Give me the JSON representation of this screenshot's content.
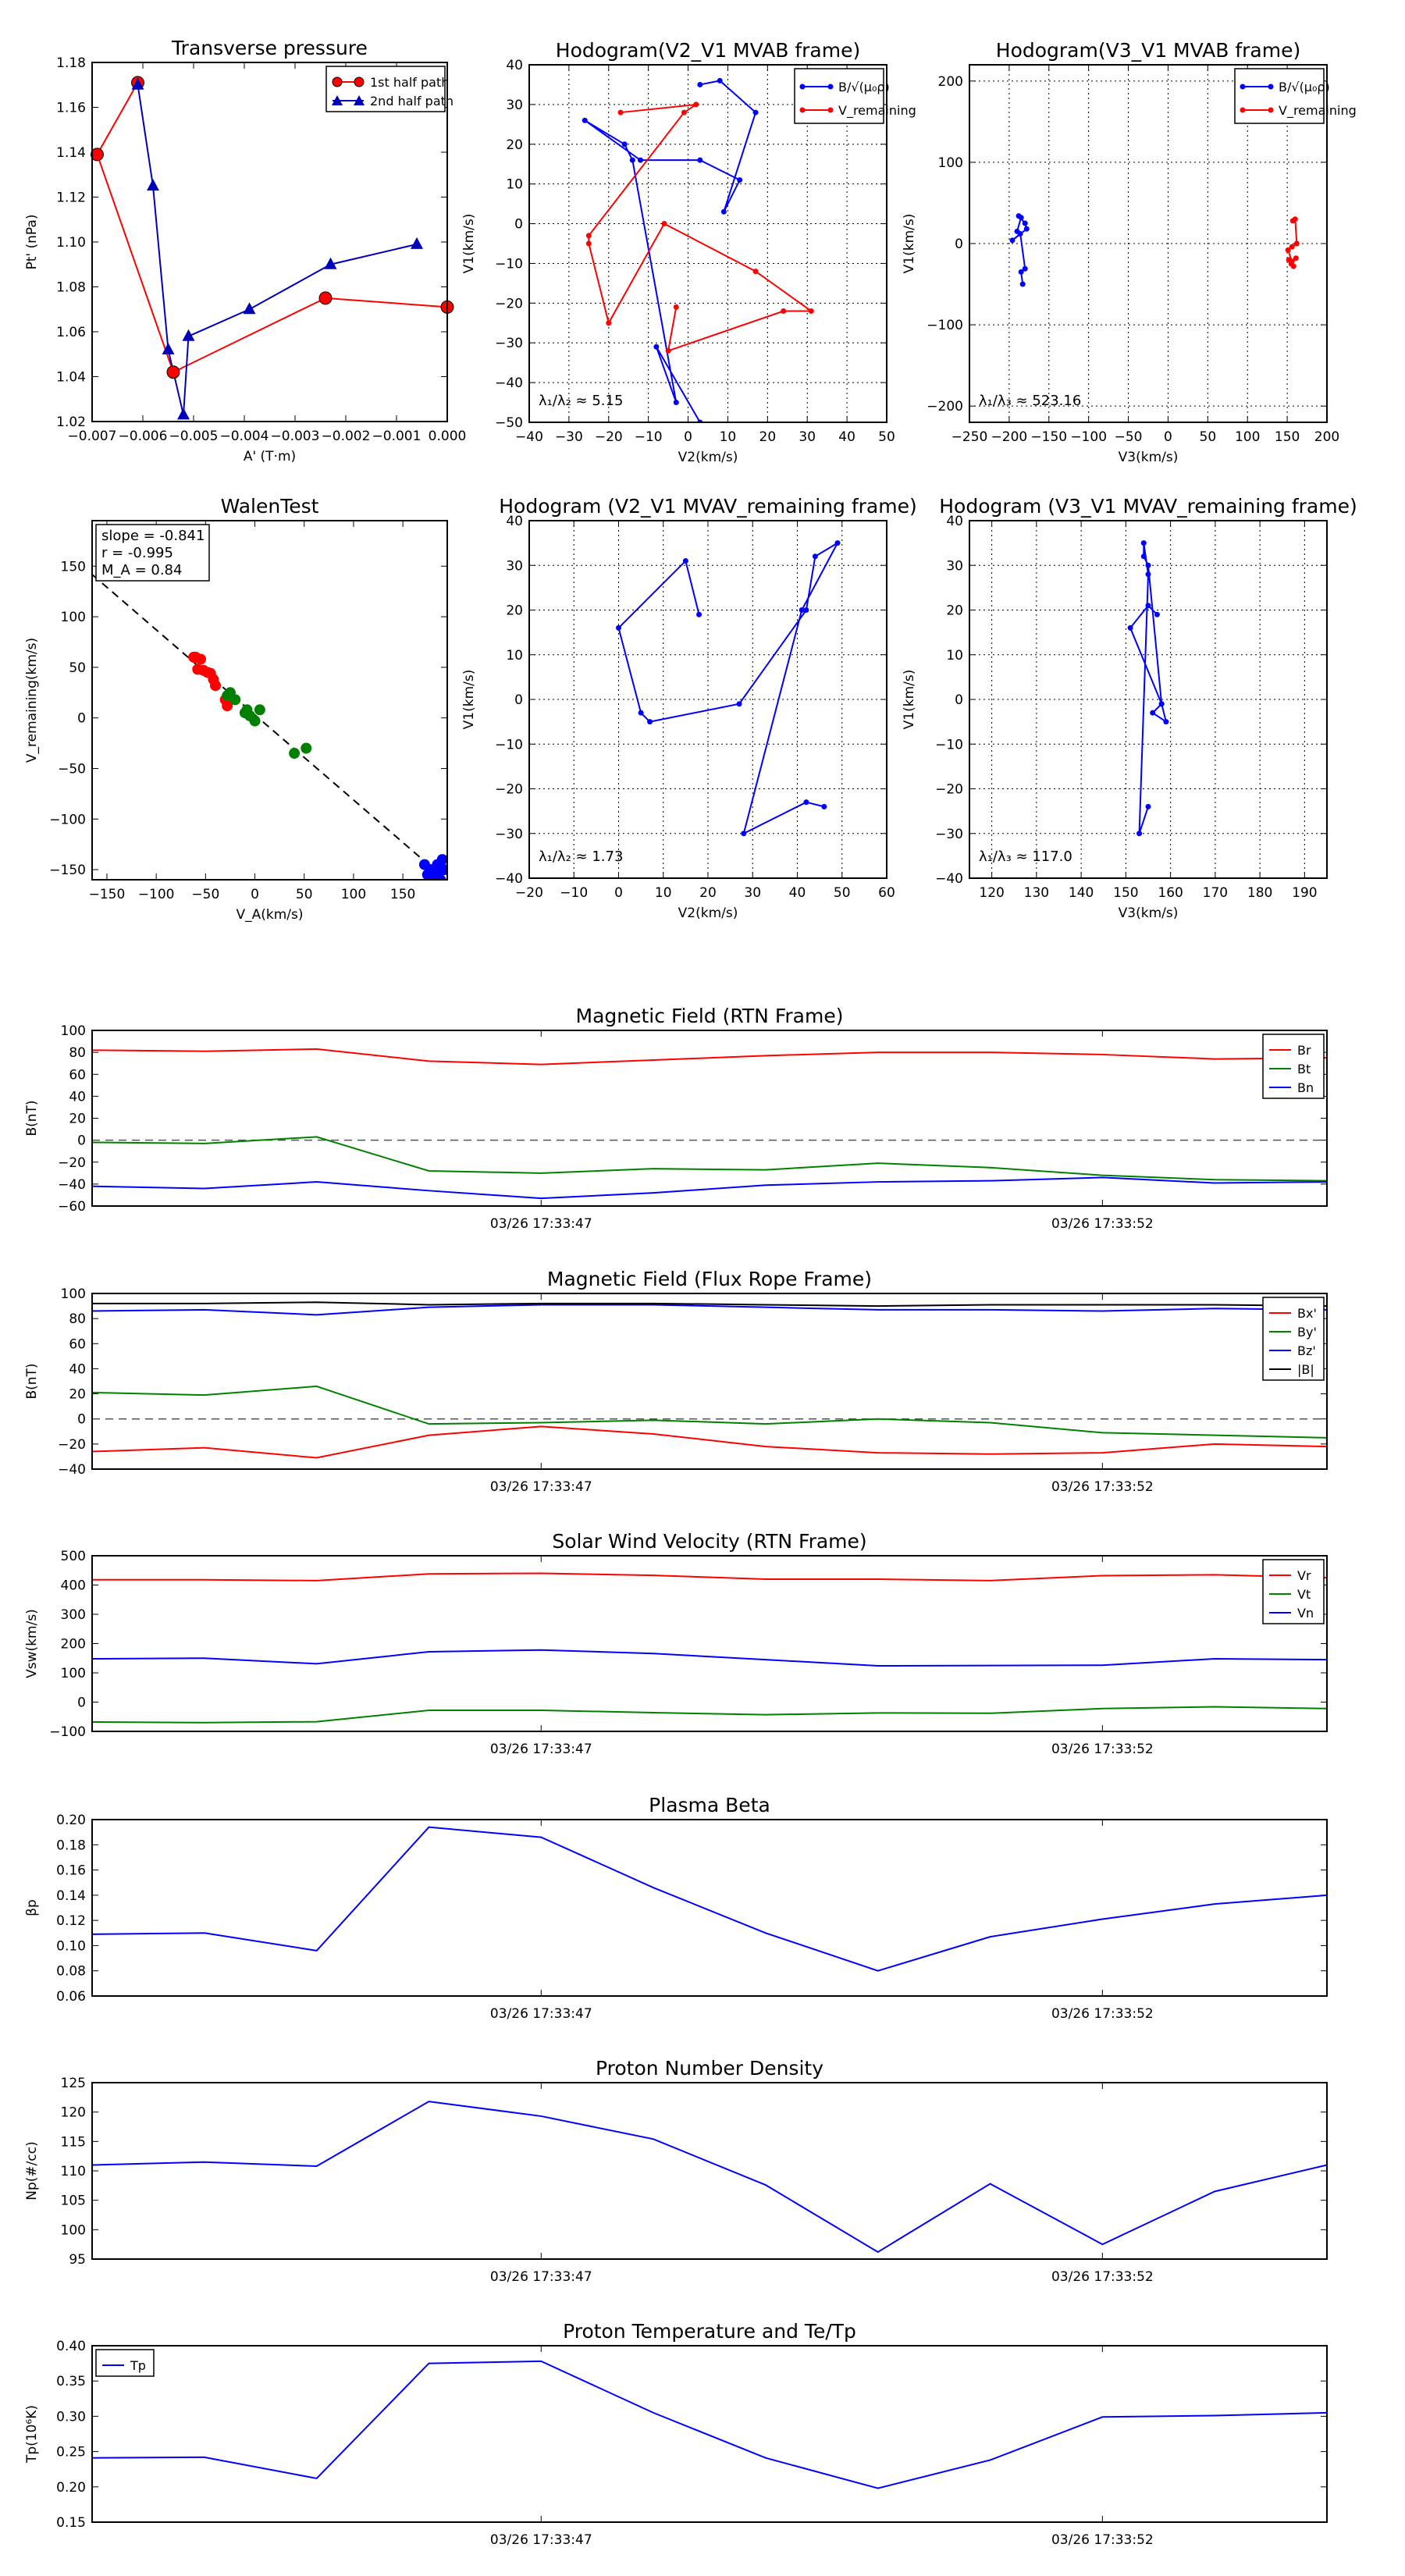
{
  "chart_data": [
    {
      "id": "pt",
      "type": "line",
      "title": "Transverse pressure",
      "xlabel": "A' (T·m)",
      "ylabel": "Pt' (nPa)",
      "xlim": [
        -0.007,
        0.0
      ],
      "ylim": [
        1.02,
        1.18
      ],
      "xticks": [
        -0.007,
        -0.006,
        -0.005,
        -0.004,
        -0.003,
        -0.002,
        -0.001,
        0.0
      ],
      "xtick_labels": [
        "−0.007",
        "−0.006",
        "−0.005",
        "−0.004",
        "−0.003",
        "−0.002",
        "−0.001",
        "0.000"
      ],
      "yticks": [
        1.02,
        1.04,
        1.06,
        1.08,
        1.1,
        1.12,
        1.14,
        1.16,
        1.18
      ],
      "ytick_labels": [
        "1.02",
        "1.04",
        "1.06",
        "1.08",
        "1.10",
        "1.12",
        "1.14",
        "1.16",
        "1.18"
      ],
      "grid": false,
      "legend": "top-right",
      "series": [
        {
          "name": "1st half path",
          "color": "#ff0000",
          "marker": "circle",
          "x": [
            -0.0061,
            -0.0069,
            -0.0054,
            -0.0024,
            0.0
          ],
          "y": [
            1.171,
            1.139,
            1.042,
            1.075,
            1.071
          ]
        },
        {
          "name": "2nd half path",
          "color": "#0000bb",
          "marker": "triangle",
          "x": [
            -0.0061,
            -0.0058,
            -0.0055,
            -0.0052,
            -0.0051,
            -0.0039,
            -0.0023,
            -0.0006
          ],
          "y": [
            1.17,
            1.125,
            1.052,
            1.023,
            1.058,
            1.07,
            1.09,
            1.099
          ]
        }
      ]
    },
    {
      "id": "hodo1",
      "type": "line",
      "title": "Hodogram(V2_V1 MVAB frame)",
      "xlabel": "V2(km/s)",
      "ylabel": "V1(km/s)",
      "xlim": [
        -40,
        50
      ],
      "ylim": [
        -50,
        40
      ],
      "xticks": [
        -40,
        -30,
        -20,
        -10,
        0,
        10,
        20,
        30,
        40,
        50
      ],
      "xtick_labels": [
        "−40",
        "−30",
        "−20",
        "−10",
        "0",
        "10",
        "20",
        "30",
        "40",
        "50"
      ],
      "yticks": [
        -50,
        -40,
        -30,
        -20,
        -10,
        0,
        10,
        20,
        30,
        40
      ],
      "ytick_labels": [
        "−50",
        "−40",
        "−30",
        "−20",
        "−10",
        "0",
        "10",
        "20",
        "30",
        "40"
      ],
      "grid": true,
      "legend": "top-right",
      "annotation": "λ₁/λ₂ ≈ 5.15",
      "series": [
        {
          "name": "B/√(μ₀ρ)",
          "color": "#0000ff",
          "marker": "dot",
          "x": [
            3,
            8,
            17,
            9,
            13,
            3,
            -12,
            -26,
            -16,
            -14,
            -3,
            -8,
            3
          ],
          "y": [
            35,
            36,
            28,
            3,
            11,
            16,
            16,
            26,
            20,
            16,
            -45,
            -31,
            -50
          ]
        },
        {
          "name": "V_remaining",
          "color": "#ff0000",
          "marker": "dot",
          "x": [
            -17,
            2,
            -1,
            -25,
            -25,
            -20,
            -6,
            17,
            31,
            24,
            -5,
            -3
          ],
          "y": [
            28,
            30,
            28,
            -3,
            -5,
            -25,
            0,
            -12,
            -22,
            -22,
            -32,
            -21
          ]
        }
      ]
    },
    {
      "id": "hodo2",
      "type": "line",
      "title": "Hodogram(V3_V1 MVAB frame)",
      "xlabel": "V3(km/s)",
      "ylabel": "V1(km/s)",
      "xlim": [
        -250,
        200
      ],
      "ylim": [
        -220,
        220
      ],
      "xticks": [
        -250,
        -200,
        -150,
        -100,
        -50,
        0,
        50,
        100,
        150,
        200
      ],
      "xtick_labels": [
        "−250",
        "−200",
        "−150",
        "−100",
        "−50",
        "0",
        "50",
        "100",
        "150",
        "200"
      ],
      "yticks": [
        -200,
        -100,
        0,
        100,
        200
      ],
      "ytick_labels": [
        "−200",
        "−100",
        "0",
        "100",
        "200"
      ],
      "grid": true,
      "legend": "top-right",
      "annotation": "λ₁/λ₃ ≈ 523.16",
      "series": [
        {
          "name": "B/√(μ₀ρ)",
          "color": "#0000ff",
          "marker": "dot",
          "x": [
            -190,
            -185,
            -188,
            -180,
            -178,
            -196,
            -186,
            -180,
            -185,
            -183
          ],
          "y": [
            15,
            32,
            34,
            25,
            18,
            4,
            12,
            -31,
            -35,
            -50
          ]
        },
        {
          "name": "V_remaining",
          "color": "#ff0000",
          "marker": "dot",
          "x": [
            157,
            160,
            162,
            156,
            151,
            156,
            161,
            155,
            158,
            152
          ],
          "y": [
            28,
            30,
            0,
            -4,
            -8,
            -22,
            -18,
            -25,
            -28,
            -20
          ]
        }
      ]
    },
    {
      "id": "walen",
      "type": "scatter",
      "title": "WalenTest",
      "xlabel": "V_A(km/s)",
      "ylabel": "V_remaining(km/s)",
      "xlim": [
        -165,
        195
      ],
      "ylim": [
        -160,
        195
      ],
      "xticks": [
        -150,
        -100,
        -50,
        0,
        50,
        100,
        150
      ],
      "xtick_labels": [
        "−150",
        "−100",
        "−50",
        "0",
        "50",
        "100",
        "150"
      ],
      "yticks": [
        -150,
        -100,
        -50,
        0,
        50,
        100,
        150
      ],
      "ytick_labels": [
        "−150",
        "−100",
        "−50",
        "0",
        "50",
        "100",
        "150"
      ],
      "grid": false,
      "fit_line": {
        "slope": -0.841,
        "intercept": 3
      },
      "annotations": [
        "slope = -0.841",
        "r = -0.995",
        "M_A = 0.84"
      ],
      "series": [
        {
          "name": "red",
          "color": "#ff0000",
          "x": [
            -60,
            -55,
            -52,
            -48,
            -45,
            -42,
            -40,
            -58,
            -30,
            -28,
            -62
          ],
          "y": [
            60,
            58,
            47,
            45,
            44,
            38,
            32,
            48,
            18,
            12,
            60
          ]
        },
        {
          "name": "green",
          "color": "#008000",
          "x": [
            -25,
            -20,
            -10,
            -5,
            0,
            5,
            40,
            52,
            -8,
            -28
          ],
          "y": [
            25,
            18,
            5,
            2,
            -3,
            8,
            -35,
            -30,
            8,
            22
          ]
        },
        {
          "name": "blue",
          "color": "#0000ff",
          "x": [
            172,
            178,
            183,
            186,
            190,
            188,
            175,
            180,
            192,
            185
          ],
          "y": [
            -145,
            -150,
            -152,
            -155,
            -140,
            -160,
            -155,
            -158,
            -150,
            -145
          ]
        }
      ]
    },
    {
      "id": "hodo3",
      "type": "line",
      "title": "Hodogram (V2_V1 MVAV_remaining frame)",
      "xlabel": "V2(km/s)",
      "ylabel": "V1(km/s)",
      "xlim": [
        -20,
        60
      ],
      "ylim": [
        -40,
        40
      ],
      "xticks": [
        -20,
        -10,
        0,
        10,
        20,
        30,
        40,
        50,
        60
      ],
      "xtick_labels": [
        "−20",
        "−10",
        "0",
        "10",
        "20",
        "30",
        "40",
        "50",
        "60"
      ],
      "yticks": [
        -40,
        -30,
        -20,
        -10,
        0,
        10,
        20,
        30,
        40
      ],
      "ytick_labels": [
        "−40",
        "−30",
        "−20",
        "−10",
        "0",
        "10",
        "20",
        "30",
        "40"
      ],
      "grid": true,
      "annotation": "λ₁/λ₂ ≈ 1.73",
      "series": [
        {
          "name": "B",
          "color": "#0000ff",
          "marker": "dot",
          "x": [
            18,
            15,
            0,
            5,
            7,
            27,
            42,
            44,
            49,
            41,
            28,
            42,
            46
          ],
          "y": [
            19,
            31,
            16,
            -3,
            -5,
            -1,
            20,
            32,
            35,
            20,
            -30,
            -23,
            -24
          ]
        }
      ]
    },
    {
      "id": "hodo4",
      "type": "line",
      "title": "Hodogram (V3_V1 MVAV_remaining frame)",
      "xlabel": "V3(km/s)",
      "ylabel": "V1(km/s)",
      "xlim": [
        115,
        195
      ],
      "ylim": [
        -40,
        40
      ],
      "xticks": [
        120,
        130,
        140,
        150,
        160,
        170,
        180,
        190
      ],
      "xtick_labels": [
        "120",
        "130",
        "140",
        "150",
        "160",
        "170",
        "180",
        "190"
      ],
      "yticks": [
        -40,
        -30,
        -20,
        -10,
        0,
        10,
        20,
        30,
        40
      ],
      "ytick_labels": [
        "−40",
        "−30",
        "−20",
        "−10",
        "0",
        "10",
        "20",
        "30",
        "40"
      ],
      "grid": true,
      "annotation": "λ₁/λ₃ ≈ 117.0",
      "series": [
        {
          "name": "B",
          "color": "#0000ff",
          "marker": "dot",
          "x": [
            157,
            155,
            151,
            158,
            159,
            156,
            158,
            155,
            154,
            154,
            155,
            153,
            155
          ],
          "y": [
            19,
            21,
            16,
            -1,
            -5,
            -3,
            -1,
            30,
            32,
            35,
            28,
            -30,
            -24
          ]
        }
      ]
    },
    {
      "id": "bfield",
      "type": "line",
      "title": "Magnetic Field (RTN Frame)",
      "ylabel": "B(nT)",
      "xlim": [
        0,
        11
      ],
      "ylim": [
        -60,
        100
      ],
      "yticks": [
        -60,
        -40,
        -20,
        0,
        20,
        40,
        60,
        80,
        100
      ],
      "ytick_labels": [
        "−60",
        "−40",
        "−20",
        "0",
        "20",
        "40",
        "60",
        "80",
        "100"
      ],
      "xtick_positions": [
        4,
        9
      ],
      "xtick_labels": [
        "03/26 17:33:47",
        "03/26 17:33:52"
      ],
      "zero_line": true,
      "legend": "top-right",
      "series": [
        {
          "name": "Br",
          "color": "#ff0000",
          "values": [
            82,
            81,
            83,
            72,
            69,
            73,
            77,
            80,
            80,
            78,
            74,
            75
          ]
        },
        {
          "name": "Bt",
          "color": "#008000",
          "values": [
            -2,
            -3,
            3,
            -28,
            -30,
            -26,
            -27,
            -21,
            -25,
            -32,
            -36,
            -37
          ]
        },
        {
          "name": "Bn",
          "color": "#0000ff",
          "values": [
            -42,
            -44,
            -38,
            -46,
            -53,
            -48,
            -41,
            -38,
            -37,
            -34,
            -39,
            -38
          ]
        }
      ]
    },
    {
      "id": "fluxrope",
      "type": "line",
      "title": "Magnetic Field (Flux Rope Frame)",
      "ylabel": "B(nT)",
      "xlim": [
        0,
        11
      ],
      "ylim": [
        -40,
        100
      ],
      "yticks": [
        -40,
        -20,
        0,
        20,
        40,
        60,
        80,
        100
      ],
      "ytick_labels": [
        "−40",
        "−20",
        "0",
        "20",
        "40",
        "60",
        "80",
        "100"
      ],
      "xtick_positions": [
        4,
        9
      ],
      "xtick_labels": [
        "03/26 17:33:47",
        "03/26 17:33:52"
      ],
      "zero_line": true,
      "legend": "top-right",
      "series": [
        {
          "name": "Bx'",
          "color": "#ff0000",
          "values": [
            -26,
            -23,
            -31,
            -13,
            -6,
            -12,
            -22,
            -27,
            -28,
            -27,
            -20,
            -22
          ]
        },
        {
          "name": "By'",
          "color": "#008000",
          "values": [
            21,
            19,
            26,
            -4,
            -3,
            -1,
            -4,
            0,
            -3,
            -11,
            -13,
            -15
          ]
        },
        {
          "name": "Bz'",
          "color": "#0000ff",
          "values": [
            86,
            87,
            83,
            89,
            91,
            91,
            89,
            87,
            87,
            86,
            88,
            87
          ]
        },
        {
          "name": "|B|",
          "color": "#000000",
          "values": [
            92,
            92,
            93,
            91,
            92,
            92,
            91,
            90,
            91,
            91,
            91,
            90
          ]
        }
      ]
    },
    {
      "id": "vsw",
      "type": "line",
      "title": "Solar Wind Velocity (RTN Frame)",
      "ylabel": "Vsw(km/s)",
      "xlim": [
        0,
        11
      ],
      "ylim": [
        -100,
        500
      ],
      "yticks": [
        -100,
        0,
        100,
        200,
        300,
        400,
        500
      ],
      "ytick_labels": [
        "−100",
        "0",
        "100",
        "200",
        "300",
        "400",
        "500"
      ],
      "xtick_positions": [
        4,
        9
      ],
      "xtick_labels": [
        "03/26 17:33:47",
        "03/26 17:33:52"
      ],
      "legend": "top-right",
      "series": [
        {
          "name": "Vr",
          "color": "#ff0000",
          "values": [
            418,
            418,
            415,
            438,
            440,
            433,
            420,
            420,
            415,
            432,
            435,
            425
          ]
        },
        {
          "name": "Vt",
          "color": "#008000",
          "values": [
            -68,
            -70,
            -67,
            -28,
            -28,
            -36,
            -43,
            -37,
            -38,
            -22,
            -16,
            -22
          ]
        },
        {
          "name": "Vn",
          "color": "#0000ff",
          "values": [
            148,
            150,
            131,
            172,
            178,
            166,
            145,
            124,
            125,
            126,
            148,
            145
          ]
        }
      ]
    },
    {
      "id": "beta",
      "type": "line",
      "title": "Plasma Beta",
      "ylabel": "βp",
      "xlim": [
        0,
        11
      ],
      "ylim": [
        0.06,
        0.2
      ],
      "yticks": [
        0.06,
        0.08,
        0.1,
        0.12,
        0.14,
        0.16,
        0.18,
        0.2
      ],
      "ytick_labels": [
        "0.06",
        "0.08",
        "0.10",
        "0.12",
        "0.14",
        "0.16",
        "0.18",
        "0.20"
      ],
      "xtick_positions": [
        4,
        9
      ],
      "xtick_labels": [
        "03/26 17:33:47",
        "03/26 17:33:52"
      ],
      "series": [
        {
          "name": "Beta",
          "color": "#0000ff",
          "values": [
            0.109,
            0.11,
            0.096,
            0.194,
            0.186,
            0.146,
            0.11,
            0.08,
            0.107,
            0.121,
            0.133,
            0.14
          ]
        }
      ]
    },
    {
      "id": "np",
      "type": "line",
      "title": "Proton Number Density",
      "ylabel": "Np(#/cc)",
      "xlim": [
        0,
        11
      ],
      "ylim": [
        95,
        125
      ],
      "yticks": [
        95,
        100,
        105,
        110,
        115,
        120,
        125
      ],
      "ytick_labels": [
        "95",
        "100",
        "105",
        "110",
        "115",
        "120",
        "125"
      ],
      "xtick_positions": [
        4,
        9
      ],
      "xtick_labels": [
        "03/26 17:33:47",
        "03/26 17:33:52"
      ],
      "series": [
        {
          "name": "Np",
          "color": "#0000ff",
          "values": [
            111,
            111.5,
            110.8,
            121.8,
            119.3,
            115.4,
            107.6,
            96.2,
            107.8,
            97.5,
            106.5,
            111.0
          ]
        }
      ]
    },
    {
      "id": "tp",
      "type": "line",
      "title": "Proton Temperature and Te/Tp",
      "ylabel": "Tp(10⁶K)",
      "xlim": [
        0,
        11
      ],
      "ylim": [
        0.15,
        0.4
      ],
      "yticks": [
        0.15,
        0.2,
        0.25,
        0.3,
        0.35,
        0.4
      ],
      "ytick_labels": [
        "0.15",
        "0.20",
        "0.25",
        "0.30",
        "0.35",
        "0.40"
      ],
      "xtick_positions": [
        4,
        9
      ],
      "xtick_labels": [
        "03/26 17:33:47",
        "03/26 17:33:52"
      ],
      "legend": "top-left",
      "series": [
        {
          "name": "Tp",
          "color": "#0000ff",
          "values": [
            0.241,
            0.242,
            0.212,
            0.375,
            0.378,
            0.305,
            0.241,
            0.198,
            0.238,
            0.299,
            0.301,
            0.305
          ]
        }
      ]
    }
  ]
}
